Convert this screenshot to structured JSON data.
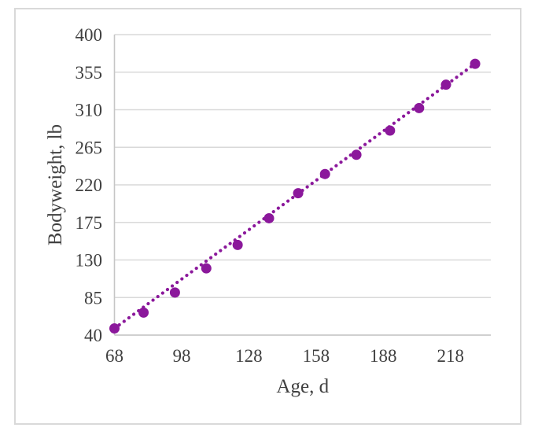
{
  "chart_data": {
    "type": "scatter",
    "title": "",
    "xlabel": "Age, d",
    "ylabel": "Bodyweight, lb",
    "series": [
      {
        "name": "bodyweight",
        "x": [
          68,
          81,
          95,
          109,
          123,
          137,
          150,
          162,
          176,
          191,
          204,
          216,
          229
        ],
        "y": [
          48,
          67,
          91,
          120,
          148,
          180,
          210,
          233,
          256,
          285,
          312,
          340,
          365
        ]
      }
    ],
    "trendline": {
      "type": "linear",
      "style": "dotted",
      "slope": 1.97,
      "intercept": -86.0,
      "x_start": 68,
      "x_end": 229
    },
    "xticks": [
      "68",
      "98",
      "128",
      "158",
      "188",
      "218"
    ],
    "xtick_values": [
      68,
      98,
      128,
      158,
      188,
      218
    ],
    "yticks": [
      "40",
      "85",
      "130",
      "175",
      "220",
      "265",
      "310",
      "355",
      "400"
    ],
    "ytick_values": [
      40,
      85,
      130,
      175,
      220,
      265,
      310,
      355,
      400
    ],
    "xlim": [
      68,
      236
    ],
    "ylim": [
      40,
      400
    ],
    "grid": "horizontal-only",
    "legend": "none",
    "colors": {
      "marker": "#8B189B",
      "trendline": "#8B189B",
      "gridline": "#D9D9D9",
      "axis_line": "#C6C6C6",
      "text": "#404040",
      "chart_border": "#D9D9D9",
      "background": "#FFFFFF"
    }
  }
}
